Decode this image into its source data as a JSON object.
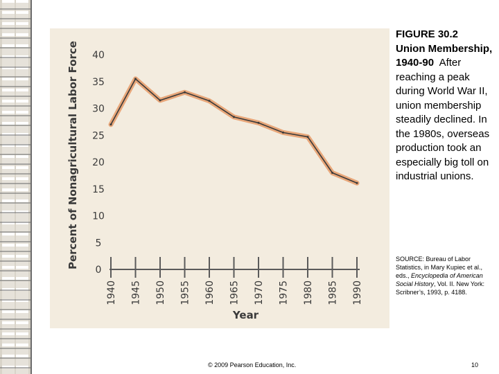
{
  "figure": {
    "number": "FIGURE 30.2",
    "title": "Union Membership, 1940-90",
    "body": "After reaching a peak during World War II, union membership steadily declined. In the 1980s, overseas production took an especially big toll on industrial unions.",
    "source_prefix": "SOURCE: Bureau of Labor Statistics, in Mary Kupiec et al., eds.,",
    "source_italic": "Encyclopedia of American Social History",
    "source_suffix": ", Vol. II. New York: Scribner’s, 1993, p. 4188."
  },
  "footer": {
    "copyright": "© 2009 Pearson Education, Inc.",
    "page": "10"
  },
  "colors": {
    "chart_bg": "#f3ecdf",
    "line": "#e8a77a",
    "line_core": "#3a3a3a",
    "axis": "#5a5a5a",
    "label": "#3a3a3a"
  },
  "chart_data": {
    "type": "line",
    "title": "",
    "xlabel": "Year",
    "ylabel": "Percent of Nonagricultural Labor Force",
    "xlim": [
      1940,
      1990
    ],
    "ylim": [
      0,
      40
    ],
    "grid": false,
    "x_ticks": [
      "1940",
      "1945",
      "1950",
      "1955",
      "1960",
      "1965",
      "1970",
      "1975",
      "1980",
      "1985",
      "1990"
    ],
    "y_ticks": [
      "0",
      "5",
      "10",
      "15",
      "20",
      "25",
      "30",
      "35",
      "40"
    ],
    "series": [
      {
        "name": "Union membership",
        "x": [
          1940,
          1945,
          1950,
          1955,
          1960,
          1965,
          1970,
          1975,
          1980,
          1985,
          1990
        ],
        "values": [
          27,
          35.5,
          31.5,
          33,
          31.4,
          28.4,
          27.3,
          25.5,
          24.7,
          18,
          16.1
        ]
      }
    ]
  }
}
